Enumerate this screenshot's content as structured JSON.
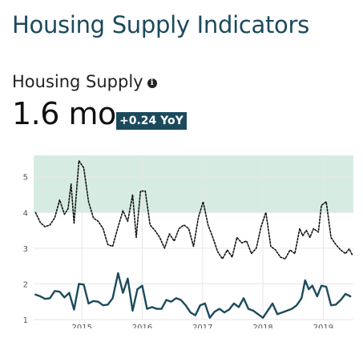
{
  "page_title": "Housing Supply Indicators",
  "metric": {
    "label": "Housing Supply",
    "value": "1.6 mo",
    "yoy": "+0.24 YoY"
  },
  "colors": {
    "primary": "#1b4a5c",
    "band": "#d6ece3",
    "dotted": "#111111"
  },
  "chart_data": {
    "type": "line",
    "title": "",
    "xlabel": "",
    "ylabel": "",
    "ylim": [
      1,
      5.6
    ],
    "xlim": [
      2014.2,
      2019.5
    ],
    "y_ticks": [
      "1",
      "2",
      "3",
      "4",
      "5"
    ],
    "x_ticks": [
      "2015",
      "2016",
      "2017",
      "2018",
      "2019"
    ],
    "band": {
      "from": 4.0,
      "to": 5.6
    },
    "grid": true,
    "series": [
      {
        "style": "dotted",
        "color": "#111111",
        "points": [
          [
            2014.23,
            4.0
          ],
          [
            2014.31,
            3.72
          ],
          [
            2014.39,
            3.6
          ],
          [
            2014.47,
            3.65
          ],
          [
            2014.55,
            3.85
          ],
          [
            2014.63,
            4.35
          ],
          [
            2014.71,
            3.95
          ],
          [
            2014.77,
            4.1
          ],
          [
            2014.82,
            4.8
          ],
          [
            2014.87,
            3.7
          ],
          [
            2014.95,
            5.45
          ],
          [
            2015.03,
            5.25
          ],
          [
            2015.11,
            4.3
          ],
          [
            2015.19,
            3.85
          ],
          [
            2015.27,
            3.75
          ],
          [
            2015.35,
            3.55
          ],
          [
            2015.43,
            3.1
          ],
          [
            2015.51,
            3.05
          ],
          [
            2015.6,
            3.6
          ],
          [
            2015.68,
            4.05
          ],
          [
            2015.76,
            3.75
          ],
          [
            2015.84,
            4.5
          ],
          [
            2015.9,
            3.3
          ],
          [
            2015.97,
            4.6
          ],
          [
            2016.05,
            4.6
          ],
          [
            2016.13,
            3.65
          ],
          [
            2016.21,
            3.5
          ],
          [
            2016.29,
            3.3
          ],
          [
            2016.37,
            3.0
          ],
          [
            2016.45,
            3.4
          ],
          [
            2016.53,
            3.2
          ],
          [
            2016.61,
            3.55
          ],
          [
            2016.69,
            3.65
          ],
          [
            2016.77,
            3.55
          ],
          [
            2016.85,
            3.05
          ],
          [
            2016.93,
            3.85
          ],
          [
            2017.01,
            4.3
          ],
          [
            2017.09,
            3.65
          ],
          [
            2017.17,
            3.3
          ],
          [
            2017.25,
            2.9
          ],
          [
            2017.33,
            2.7
          ],
          [
            2017.41,
            2.95
          ],
          [
            2017.49,
            2.75
          ],
          [
            2017.57,
            3.3
          ],
          [
            2017.65,
            3.15
          ],
          [
            2017.73,
            3.2
          ],
          [
            2017.81,
            2.85
          ],
          [
            2017.89,
            3.0
          ],
          [
            2017.97,
            3.6
          ],
          [
            2018.05,
            4.0
          ],
          [
            2018.13,
            3.05
          ],
          [
            2018.21,
            2.95
          ],
          [
            2018.29,
            2.75
          ],
          [
            2018.37,
            2.7
          ],
          [
            2018.45,
            2.95
          ],
          [
            2018.53,
            2.85
          ],
          [
            2018.61,
            3.55
          ],
          [
            2018.66,
            3.35
          ],
          [
            2018.72,
            3.5
          ],
          [
            2018.78,
            3.3
          ],
          [
            2018.84,
            3.55
          ],
          [
            2018.92,
            3.45
          ],
          [
            2018.97,
            4.2
          ],
          [
            2019.05,
            4.3
          ],
          [
            2019.13,
            3.3
          ],
          [
            2019.21,
            3.1
          ],
          [
            2019.29,
            2.95
          ],
          [
            2019.37,
            2.85
          ],
          [
            2019.43,
            2.98
          ],
          [
            2019.48,
            2.82
          ]
        ]
      },
      {
        "style": "solid",
        "color": "#1b4a5c",
        "points": [
          [
            2014.23,
            1.7
          ],
          [
            2014.31,
            1.65
          ],
          [
            2014.39,
            1.58
          ],
          [
            2014.47,
            1.6
          ],
          [
            2014.55,
            1.8
          ],
          [
            2014.63,
            1.78
          ],
          [
            2014.71,
            1.62
          ],
          [
            2014.79,
            1.75
          ],
          [
            2014.87,
            1.28
          ],
          [
            2014.95,
            2.0
          ],
          [
            2015.03,
            1.98
          ],
          [
            2015.11,
            1.45
          ],
          [
            2015.19,
            1.52
          ],
          [
            2015.27,
            1.5
          ],
          [
            2015.35,
            1.4
          ],
          [
            2015.43,
            1.42
          ],
          [
            2015.51,
            1.6
          ],
          [
            2015.6,
            2.3
          ],
          [
            2015.68,
            1.75
          ],
          [
            2015.76,
            2.15
          ],
          [
            2015.84,
            1.25
          ],
          [
            2015.92,
            1.85
          ],
          [
            2016.0,
            1.95
          ],
          [
            2016.08,
            1.3
          ],
          [
            2016.16,
            1.35
          ],
          [
            2016.24,
            1.3
          ],
          [
            2016.32,
            1.3
          ],
          [
            2016.4,
            1.55
          ],
          [
            2016.48,
            1.5
          ],
          [
            2016.56,
            1.6
          ],
          [
            2016.64,
            1.55
          ],
          [
            2016.72,
            1.4
          ],
          [
            2016.8,
            1.2
          ],
          [
            2016.88,
            1.12
          ],
          [
            2016.96,
            1.4
          ],
          [
            2017.04,
            1.45
          ],
          [
            2017.12,
            1.05
          ],
          [
            2017.2,
            1.22
          ],
          [
            2017.28,
            1.3
          ],
          [
            2017.36,
            1.2
          ],
          [
            2017.44,
            1.28
          ],
          [
            2017.52,
            1.45
          ],
          [
            2017.6,
            1.35
          ],
          [
            2017.68,
            1.6
          ],
          [
            2017.76,
            1.3
          ],
          [
            2017.84,
            1.25
          ],
          [
            2017.92,
            1.15
          ],
          [
            2018.0,
            1.05
          ],
          [
            2018.08,
            1.25
          ],
          [
            2018.16,
            1.45
          ],
          [
            2018.24,
            1.15
          ],
          [
            2018.32,
            1.2
          ],
          [
            2018.4,
            1.25
          ],
          [
            2018.48,
            1.3
          ],
          [
            2018.56,
            1.4
          ],
          [
            2018.64,
            1.6
          ],
          [
            2018.7,
            2.1
          ],
          [
            2018.76,
            1.85
          ],
          [
            2018.82,
            1.95
          ],
          [
            2018.9,
            1.65
          ],
          [
            2018.97,
            1.95
          ],
          [
            2019.05,
            1.92
          ],
          [
            2019.13,
            1.4
          ],
          [
            2019.21,
            1.42
          ],
          [
            2019.29,
            1.55
          ],
          [
            2019.37,
            1.72
          ],
          [
            2019.45,
            1.65
          ]
        ]
      }
    ]
  }
}
